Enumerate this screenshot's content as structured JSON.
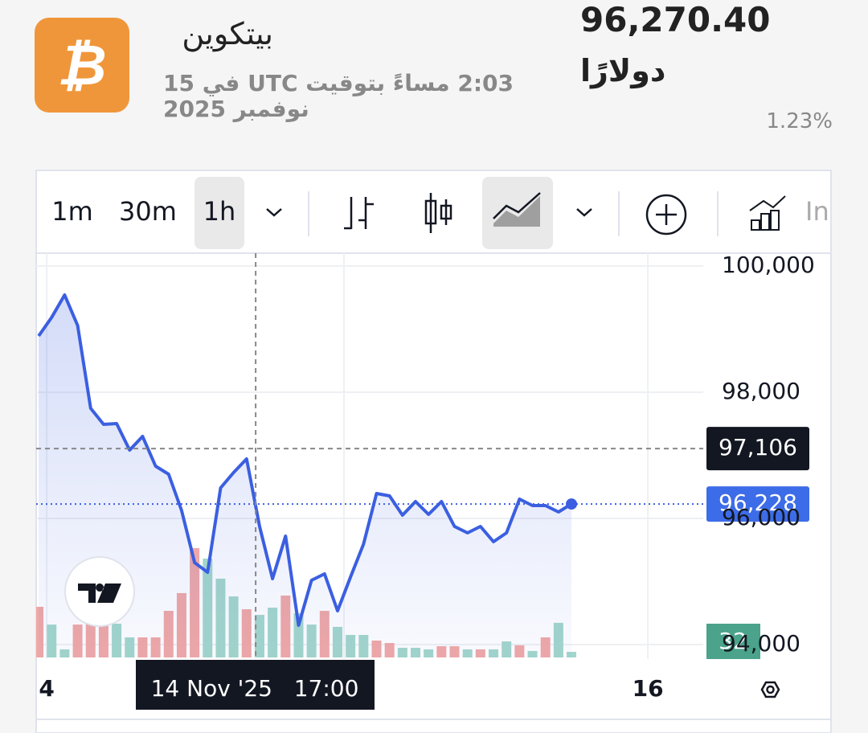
{
  "header": {
    "title": "بيتكوين",
    "timestamp": "2:03 مساءً بتوقيت UTC في 15 نوفمبر 2025",
    "price": "96,270.40",
    "currency": "دولارًا",
    "change": "1.23%"
  },
  "toolbar": {
    "intervals": [
      "1m",
      "30m",
      "1h"
    ],
    "indicators": "In"
  },
  "chart_data": {
    "type": "line",
    "color": "#3b5fe0",
    "values": [
      98892,
      99185,
      99541,
      99057,
      97745,
      97490,
      97503,
      97083,
      97299,
      96828,
      96701,
      96127,
      95299,
      95146,
      96484,
      96726,
      96943,
      95873,
      95045,
      95720,
      94306,
      95019,
      95121,
      94535,
      95070,
      95592,
      96395,
      96357,
      96051,
      96268,
      96064,
      96268,
      95873,
      95771,
      95873,
      95631,
      95771,
      96306,
      96204,
      96204,
      96102,
      96228
    ],
    "volume": {
      "values": [
        288,
        187,
        46,
        187,
        265,
        206,
        192,
        114,
        114,
        114,
        265,
        366,
        622,
        562,
        448,
        347,
        274,
        242,
        283,
        352,
        251,
        187,
        265,
        174,
        128,
        128,
        96,
        82,
        55,
        55,
        46,
        64,
        64,
        46,
        46,
        46,
        91,
        69,
        37,
        114,
        197,
        32
      ],
      "colors": [
        "#f0a8a6",
        "#a3d6cb",
        "#a3d6cb",
        "#f0a8a6",
        "#f0a8a6",
        "#f0a8a6",
        "#a3d6cb",
        "#a3d6cb",
        "#f0a8a6",
        "#f0a8a6",
        "#f0a8a6",
        "#f0a8a6",
        "#f0a8a6",
        "#a3d6cb",
        "#a3d6cb",
        "#a3d6cb",
        "#f0a8a6",
        "#a3d6cb",
        "#a3d6cb",
        "#f0a8a6",
        "#a3d6cb",
        "#a3d6cb",
        "#f0a8a6",
        "#a3d6cb",
        "#a3d6cb",
        "#a3d6cb",
        "#f0a8a6",
        "#f0a8a6",
        "#a3d6cb",
        "#a3d6cb",
        "#a3d6cb",
        "#f0a8a6",
        "#f0a8a6",
        "#a3d6cb",
        "#f0a8a6",
        "#a3d6cb",
        "#a3d6cb",
        "#f0a8a6",
        "#a3d6cb",
        "#f0a8a6",
        "#a3d6cb",
        "#a3d6cb"
      ],
      "label_color": "#4aa38a"
    },
    "volume_lim": [
      0,
      2299
    ],
    "ylim": [
      93796,
      100204
    ],
    "yticks": [
      {
        "value": 100000,
        "label": "100,000"
      },
      {
        "value": 98000,
        "label": "98,000"
      },
      {
        "value": 96000,
        "label": "96,000"
      },
      {
        "value": 94000,
        "label": "94,000"
      }
    ],
    "xlim": [
      -0.19,
      51.14
    ],
    "xticks": [
      {
        "value": 0.62,
        "label": "4"
      },
      {
        "value": 46.88,
        "label": "16"
      }
    ],
    "last_price": {
      "value": 96228,
      "label": "96,228",
      "color": "#3d6ce8"
    },
    "crosshair": {
      "x": 16.7,
      "label": "14 Nov '25   17:00",
      "price": {
        "value": 97106,
        "label": "97,106"
      }
    },
    "grid": true
  }
}
